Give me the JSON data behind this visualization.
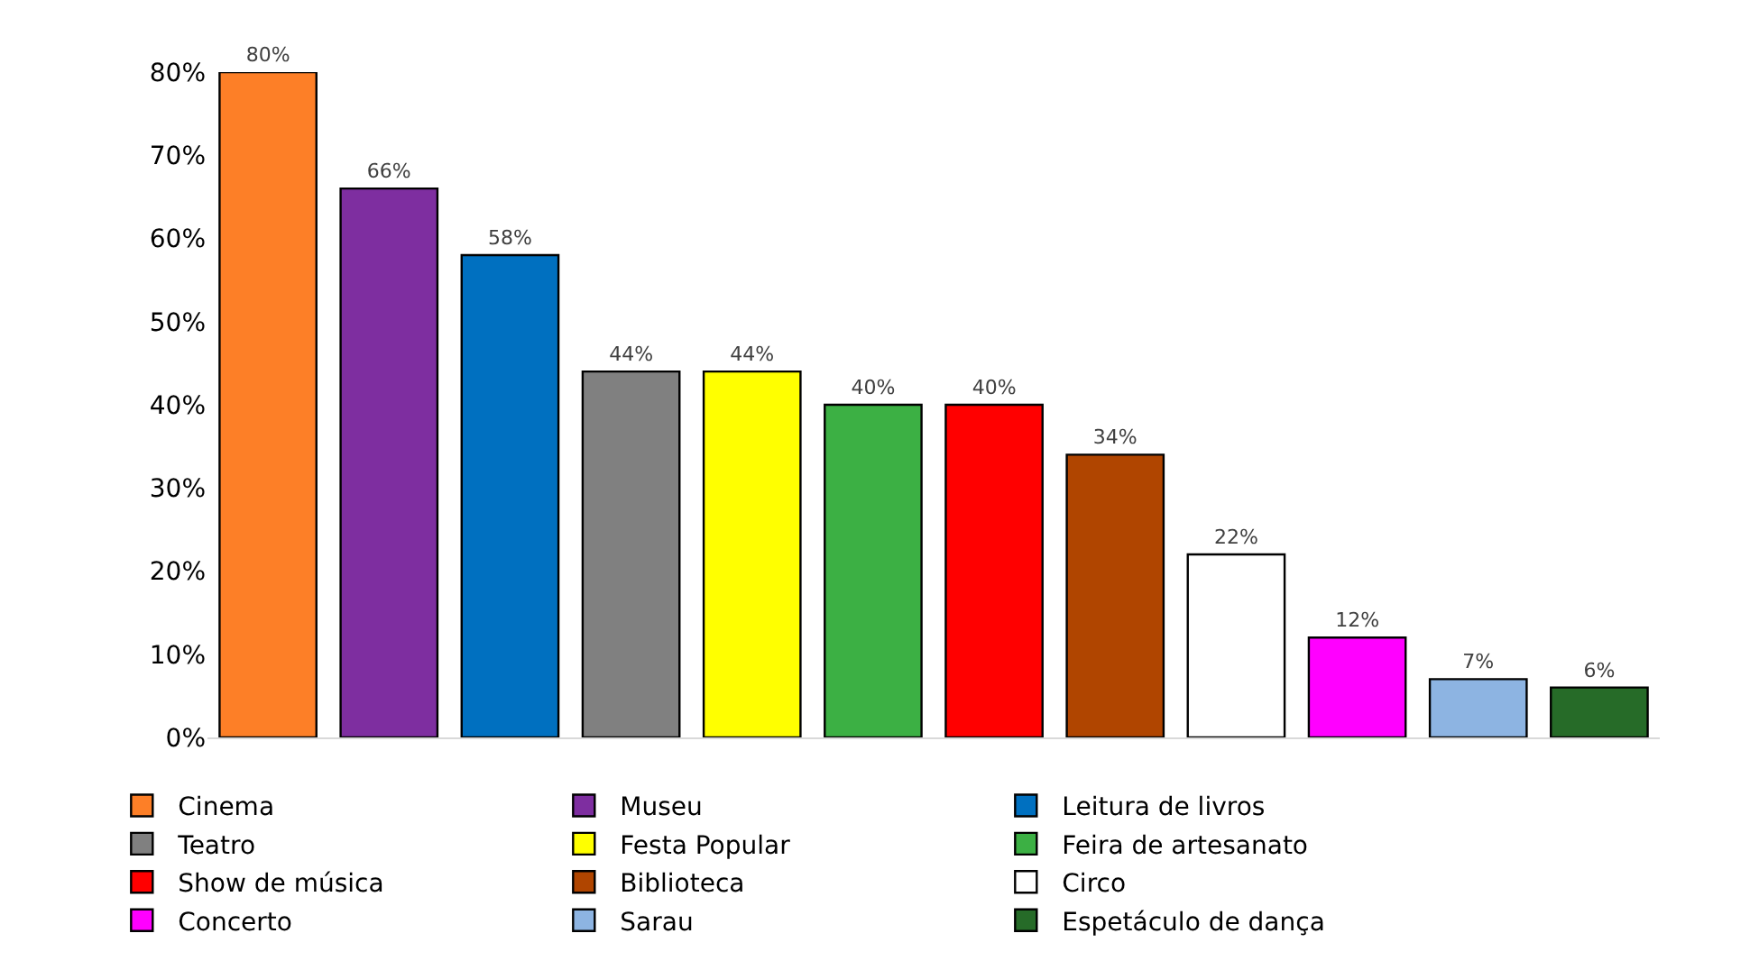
{
  "chart_data": {
    "type": "bar",
    "categories": [
      null,
      null,
      null,
      null,
      null,
      null,
      null,
      null,
      null,
      null,
      null,
      null
    ],
    "series": [
      {
        "name": "Cinema",
        "color": "#fd7f27",
        "values": [
          80,
          null,
          null,
          null,
          null,
          null,
          null,
          null,
          null,
          null,
          null,
          null
        ],
        "value_labels": [
          "80%",
          null,
          null,
          null,
          null,
          null,
          null,
          null,
          null,
          null,
          null,
          null
        ]
      },
      {
        "name": "Museu",
        "color": "#7e2ea0",
        "values": [
          null,
          66,
          null,
          null,
          null,
          null,
          null,
          null,
          null,
          null,
          null,
          null
        ],
        "value_labels": [
          null,
          "66%",
          null,
          null,
          null,
          null,
          null,
          null,
          null,
          null,
          null,
          null
        ]
      },
      {
        "name": "Leitura de livros",
        "color": "#0070c0",
        "values": [
          null,
          null,
          58,
          null,
          null,
          null,
          null,
          null,
          null,
          null,
          null,
          null
        ],
        "value_labels": [
          null,
          null,
          "58%",
          null,
          null,
          null,
          null,
          null,
          null,
          null,
          null,
          null
        ]
      },
      {
        "name": "Teatro",
        "color": "#808080",
        "values": [
          null,
          null,
          null,
          44,
          null,
          null,
          null,
          null,
          null,
          null,
          null,
          null
        ],
        "value_labels": [
          null,
          null,
          null,
          "44%",
          null,
          null,
          null,
          null,
          null,
          null,
          null,
          null
        ]
      },
      {
        "name": "Festa Popular",
        "color": "#ffff00",
        "values": [
          null,
          null,
          null,
          null,
          44,
          null,
          null,
          null,
          null,
          null,
          null,
          null
        ],
        "value_labels": [
          null,
          null,
          null,
          null,
          "44%",
          null,
          null,
          null,
          null,
          null,
          null,
          null
        ]
      },
      {
        "name": "Feira de artesanato",
        "color": "#3cb044",
        "values": [
          null,
          null,
          null,
          null,
          null,
          40,
          null,
          null,
          null,
          null,
          null,
          null
        ],
        "value_labels": [
          null,
          null,
          null,
          null,
          null,
          "40%",
          null,
          null,
          null,
          null,
          null,
          null
        ]
      },
      {
        "name": "Show de música",
        "color": "#ff0000",
        "values": [
          null,
          null,
          null,
          null,
          null,
          null,
          40,
          null,
          null,
          null,
          null,
          null
        ],
        "value_labels": [
          null,
          null,
          null,
          null,
          null,
          null,
          "40%",
          null,
          null,
          null,
          null,
          null
        ]
      },
      {
        "name": "Biblioteca",
        "color": "#b04500",
        "values": [
          null,
          null,
          null,
          null,
          null,
          null,
          null,
          34,
          null,
          null,
          null,
          null
        ],
        "value_labels": [
          null,
          null,
          null,
          null,
          null,
          null,
          null,
          "34%",
          null,
          null,
          null,
          null
        ]
      },
      {
        "name": "Circo",
        "color": "#ffffff",
        "values": [
          null,
          null,
          null,
          null,
          null,
          null,
          null,
          null,
          22,
          null,
          null,
          null
        ],
        "value_labels": [
          null,
          null,
          null,
          null,
          null,
          null,
          null,
          null,
          "22%",
          null,
          null,
          null
        ]
      },
      {
        "name": "Concerto",
        "color": "#ff00ff",
        "values": [
          null,
          null,
          null,
          null,
          null,
          null,
          null,
          null,
          null,
          12,
          null,
          null
        ],
        "value_labels": [
          null,
          null,
          null,
          null,
          null,
          null,
          null,
          null,
          null,
          "12%",
          null,
          null
        ]
      },
      {
        "name": "Sarau",
        "color": "#8db4e2",
        "values": [
          null,
          null,
          null,
          null,
          null,
          null,
          null,
          null,
          null,
          null,
          7,
          null
        ],
        "value_labels": [
          null,
          null,
          null,
          null,
          null,
          null,
          null,
          null,
          null,
          null,
          "7%",
          null
        ]
      },
      {
        "name": "Espetáculo de dança",
        "color": "#266b28",
        "values": [
          null,
          null,
          null,
          null,
          null,
          null,
          null,
          null,
          null,
          null,
          null,
          6
        ],
        "value_labels": [
          null,
          null,
          null,
          null,
          null,
          null,
          null,
          null,
          null,
          null,
          null,
          "6%"
        ]
      }
    ],
    "ylim": [
      0,
      80
    ],
    "yticks": [
      {
        "value": 0,
        "label": "0%"
      },
      {
        "value": 10,
        "label": "10%"
      },
      {
        "value": 20,
        "label": "20%"
      },
      {
        "value": 30,
        "label": "30%"
      },
      {
        "value": 40,
        "label": "40%"
      },
      {
        "value": 50,
        "label": "50%"
      },
      {
        "value": 60,
        "label": "60%"
      },
      {
        "value": 70,
        "label": "70%"
      },
      {
        "value": 80,
        "label": "80%"
      }
    ],
    "tick_labels": "y",
    "legend": "bottom"
  }
}
